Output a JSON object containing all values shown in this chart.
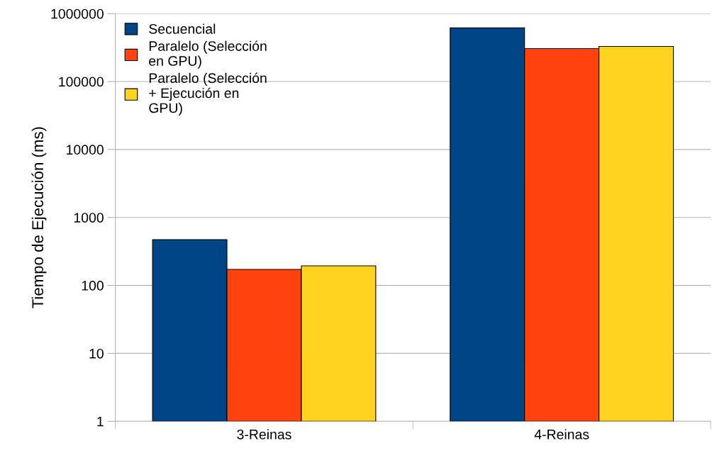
{
  "chart_data": {
    "type": "bar",
    "ylabel": "Tiempo de Ejecución (ms)",
    "log": "y",
    "categories": [
      "3-Reinas",
      "4-Reinas"
    ],
    "series": [
      {
        "name": "Secuencial",
        "color": "#004586",
        "values": [
          470,
          615000
        ]
      },
      {
        "name": "Paralelo (Selección\nen GPU)",
        "color": "#ff420e",
        "values": [
          172,
          306000
        ]
      },
      {
        "name": "Paralelo (Selección\n+ Ejecución en\nGPU)",
        "color": "#ffd320",
        "values": [
          194,
          329000
        ]
      }
    ],
    "ylim": [
      1,
      1000000
    ],
    "yticks": [
      1,
      10,
      100,
      1000,
      10000,
      100000,
      1000000
    ],
    "grid": "y",
    "legend": "top left"
  }
}
